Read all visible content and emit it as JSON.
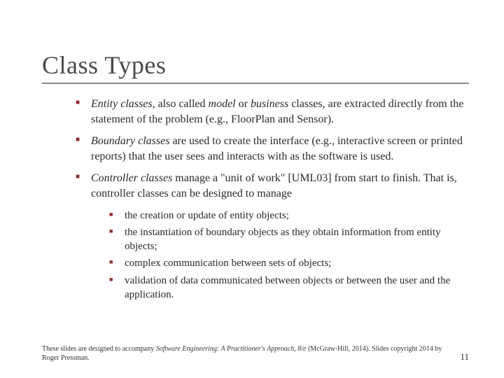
{
  "title": "Class Types",
  "bullets": {
    "b1": {
      "i1": "Entity classes",
      "t1": ", also called ",
      "i2": "model",
      "t2": " or ",
      "i3": "business",
      "t3": " classes, are extracted directly from the statement of the problem (e.g., FloorPlan and Sensor)."
    },
    "b2": {
      "i1": "Boundary classes",
      "t1": " are used to create the interface (e.g., interactive screen or printed reports) that the user sees and interacts with as the software is used."
    },
    "b3": {
      "i1": "Controller classes",
      "t1": " manage a \"unit of work\" [UML03] from start to finish. That is, controller classes can be designed to manage"
    }
  },
  "sub": {
    "s1": "the creation or update of entity objects;",
    "s2": "the instantiation of boundary objects as they obtain information from entity objects;",
    "s3": "complex communication between sets of objects;",
    "s4": "validation of data communicated between objects or between the user and the application."
  },
  "footer": {
    "line1a": "These slides are designed to accompany ",
    "book": "Software Engineering: A Practitioner's Approach, 8/e",
    "line1b": " (McGraw-Hill, 2014). Slides copyright 2014 by Roger Pressman.",
    "page": "11"
  },
  "colors": {
    "bullet": "#8b2e2e",
    "title_underline": "#888888",
    "text": "#2a2a2a",
    "title": "#4a4a4a",
    "background": "#ffffff"
  },
  "typography": {
    "title_fontsize": 36,
    "body_fontsize": 16,
    "sub_fontsize": 15,
    "footer_fontsize": 10,
    "font_family": "Georgia, serif"
  }
}
